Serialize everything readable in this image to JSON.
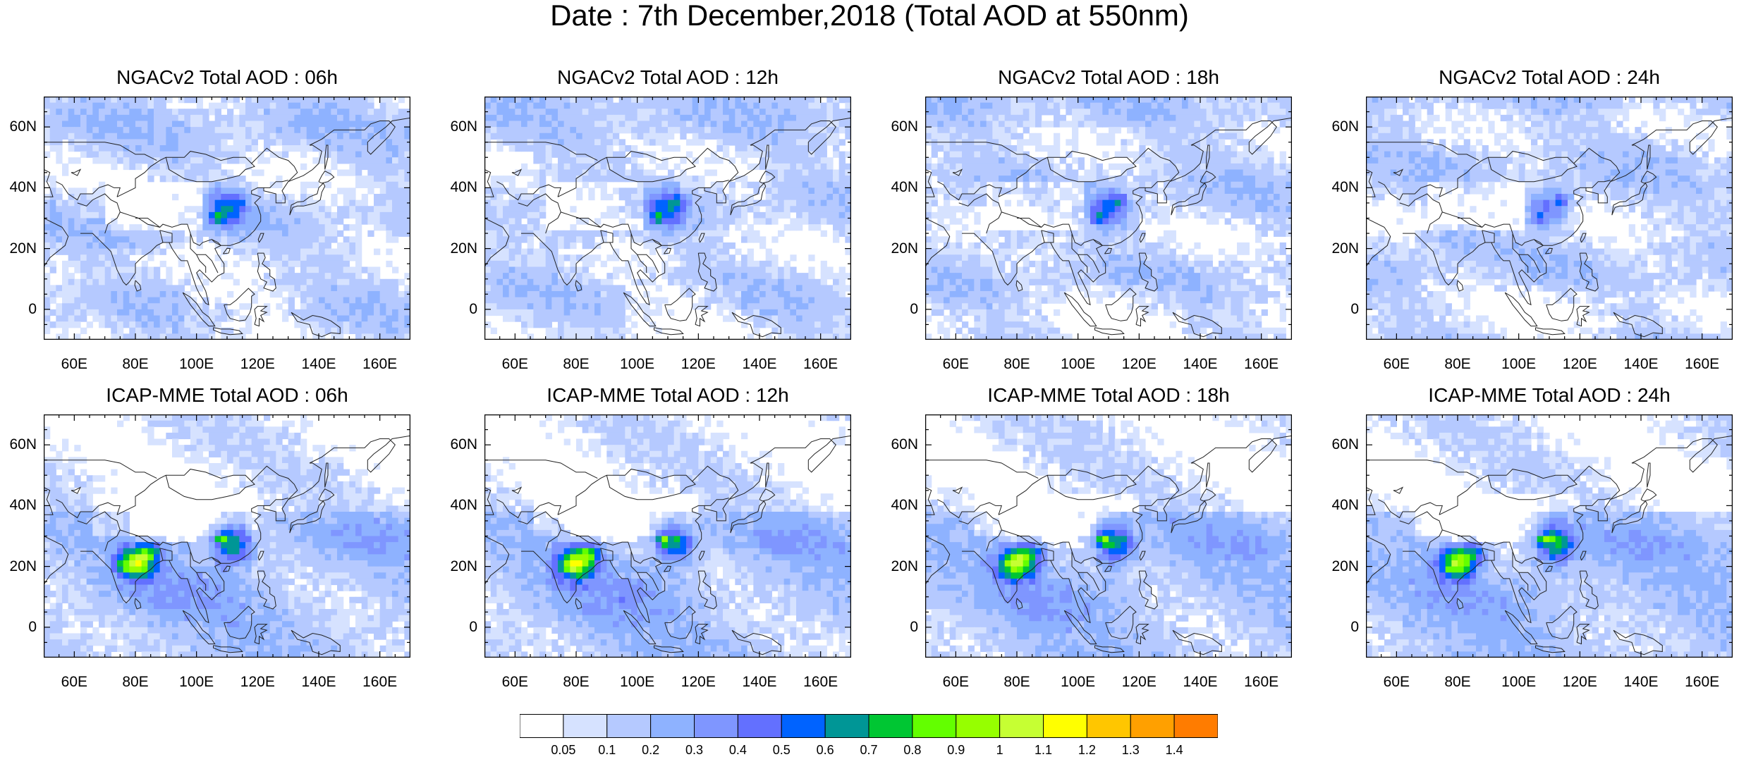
{
  "title": "Date : 7th December,2018 (Total AOD at 550nm)",
  "axes": {
    "x_ticks": [
      "60E",
      "80E",
      "100E",
      "120E",
      "140E",
      "160E"
    ],
    "x_tick_values": [
      60,
      80,
      100,
      120,
      140,
      160
    ],
    "y_ticks": [
      "60N",
      "40N",
      "20N",
      "0"
    ],
    "y_tick_values": [
      60,
      40,
      20,
      0
    ],
    "lon_range": [
      50,
      170
    ],
    "lat_range": [
      -10,
      70
    ]
  },
  "panels": [
    {
      "title": "NGACv2 Total AOD : 06h",
      "model": "NGACv2",
      "hour": "06h"
    },
    {
      "title": "NGACv2 Total AOD : 12h",
      "model": "NGACv2",
      "hour": "12h"
    },
    {
      "title": "NGACv2 Total AOD : 18h",
      "model": "NGACv2",
      "hour": "18h"
    },
    {
      "title": "NGACv2 Total AOD : 24h",
      "model": "NGACv2",
      "hour": "24h"
    },
    {
      "title": "ICAP-MME Total AOD : 06h",
      "model": "ICAP-MME",
      "hour": "06h"
    },
    {
      "title": "ICAP-MME Total AOD : 12h",
      "model": "ICAP-MME",
      "hour": "12h"
    },
    {
      "title": "ICAP-MME Total AOD : 18h",
      "model": "ICAP-MME",
      "hour": "18h"
    },
    {
      "title": "ICAP-MME Total AOD : 24h",
      "model": "ICAP-MME",
      "hour": "24h"
    }
  ],
  "colorbar": {
    "labels": [
      "0.05",
      "0.1",
      "0.2",
      "0.3",
      "0.4",
      "0.5",
      "0.6",
      "0.7",
      "0.8",
      "0.9",
      "1",
      "1.1",
      "1.2",
      "1.3",
      "1.4"
    ],
    "colors": [
      "#ffffff",
      "#d6e2ff",
      "#b5c9ff",
      "#8eb2ff",
      "#7f96ff",
      "#6370ff",
      "#0063ff",
      "#009696",
      "#00c633",
      "#63ff00",
      "#96ff00",
      "#c6ff33",
      "#ffff00",
      "#ffc600",
      "#ffa000",
      "#ff7c00",
      "#ff1900"
    ]
  }
}
